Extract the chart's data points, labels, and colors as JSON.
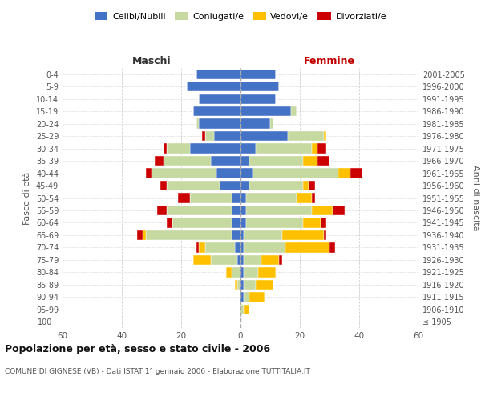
{
  "age_groups": [
    "100+",
    "95-99",
    "90-94",
    "85-89",
    "80-84",
    "75-79",
    "70-74",
    "65-69",
    "60-64",
    "55-59",
    "50-54",
    "45-49",
    "40-44",
    "35-39",
    "30-34",
    "25-29",
    "20-24",
    "15-19",
    "10-14",
    "5-9",
    "0-4"
  ],
  "birth_years": [
    "≤ 1905",
    "1906-1910",
    "1911-1915",
    "1916-1920",
    "1921-1925",
    "1926-1930",
    "1931-1935",
    "1936-1940",
    "1941-1945",
    "1946-1950",
    "1951-1955",
    "1956-1960",
    "1961-1965",
    "1966-1970",
    "1971-1975",
    "1976-1980",
    "1981-1985",
    "1986-1990",
    "1991-1995",
    "1996-2000",
    "2001-2005"
  ],
  "male": {
    "celibi": [
      0,
      0,
      0,
      0,
      0,
      1,
      2,
      3,
      3,
      3,
      3,
      7,
      8,
      10,
      17,
      9,
      14,
      16,
      14,
      18,
      15
    ],
    "coniugati": [
      0,
      0,
      0,
      1,
      3,
      9,
      10,
      29,
      20,
      22,
      14,
      18,
      22,
      16,
      8,
      3,
      1,
      0,
      0,
      0,
      0
    ],
    "vedovi": [
      0,
      0,
      0,
      1,
      2,
      6,
      2,
      1,
      0,
      0,
      0,
      0,
      0,
      0,
      0,
      0,
      0,
      0,
      0,
      0,
      0
    ],
    "divorziati": [
      0,
      0,
      0,
      0,
      0,
      0,
      1,
      2,
      2,
      3,
      4,
      2,
      2,
      3,
      1,
      1,
      0,
      0,
      0,
      0,
      0
    ]
  },
  "female": {
    "nubili": [
      0,
      0,
      1,
      1,
      1,
      1,
      1,
      1,
      2,
      2,
      2,
      3,
      4,
      3,
      5,
      16,
      10,
      17,
      12,
      13,
      12
    ],
    "coniugate": [
      0,
      1,
      2,
      4,
      5,
      6,
      14,
      13,
      19,
      22,
      17,
      18,
      29,
      18,
      19,
      12,
      1,
      2,
      0,
      0,
      0
    ],
    "vedove": [
      0,
      2,
      5,
      6,
      6,
      6,
      15,
      14,
      6,
      7,
      5,
      2,
      4,
      5,
      2,
      1,
      0,
      0,
      0,
      0,
      0
    ],
    "divorziate": [
      0,
      0,
      0,
      0,
      0,
      1,
      2,
      1,
      2,
      4,
      1,
      2,
      4,
      4,
      3,
      0,
      0,
      0,
      0,
      0,
      0
    ]
  },
  "colors": {
    "celibi": "#4472c4",
    "coniugati": "#c5d9a0",
    "vedovi": "#ffc000",
    "divorziati": "#cc0000"
  },
  "xlim": 60,
  "title": "Popolazione per età, sesso e stato civile - 2006",
  "subtitle": "COMUNE DI GIGNESE (VB) - Dati ISTAT 1° gennaio 2006 - Elaborazione TUTTITALIA.IT",
  "ylabel_left": "Fasce di età",
  "ylabel_right": "Anni di nascita",
  "xlabel_left": "Maschi",
  "xlabel_right": "Femmine",
  "bg_color": "#ffffff",
  "grid_color": "#cccccc",
  "bar_height": 0.8,
  "figsize": [
    6.0,
    5.0
  ],
  "dpi": 100
}
